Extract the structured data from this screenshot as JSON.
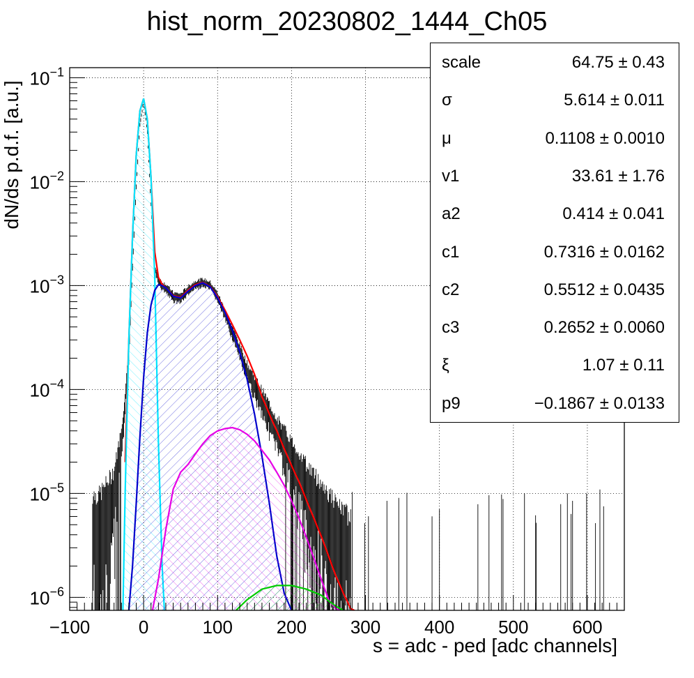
{
  "chart_data": {
    "type": "histogram",
    "title": "hist_norm_20230802_1444_Ch05",
    "xlabel": "s = adc - ped [adc channels]",
    "ylabel": "dN/ds p.d.f. [a.u.]",
    "xlim": [
      -100,
      650
    ],
    "ylim": [
      7.5e-07,
      0.125
    ],
    "yscale": "log",
    "grid": true,
    "x_ticks": [
      -100,
      0,
      100,
      200,
      300,
      400,
      500,
      600
    ],
    "y_ticks": [
      {
        "value": 0.1,
        "label": "10^{-1}"
      },
      {
        "value": 0.01,
        "label": "10^{-2}"
      },
      {
        "value": 0.001,
        "label": "10^{-3}"
      },
      {
        "value": 0.0001,
        "label": "10^{-4}"
      },
      {
        "value": 1e-05,
        "label": "10^{-5}"
      },
      {
        "value": 1e-06,
        "label": "10^{-6}"
      }
    ],
    "histogram": {
      "color": "#000000",
      "x": [
        -70,
        -60,
        -50,
        -40,
        -30,
        -20,
        -15,
        -10,
        -5,
        0,
        5,
        10,
        15,
        20,
        25,
        30,
        40,
        50,
        60,
        70,
        80,
        90,
        100,
        120,
        140,
        160,
        180,
        200,
        220,
        240,
        260,
        280
      ],
      "y": [
        5e-06,
        5e-06,
        7e-06,
        1e-05,
        3e-05,
        0.0002,
        0.0015,
        0.009,
        0.035,
        0.06,
        0.03,
        0.006,
        0.0015,
        0.0011,
        0.001,
        0.00095,
        0.00078,
        0.00076,
        0.0009,
        0.00102,
        0.00107,
        0.001,
        0.00078,
        0.00036,
        0.00015,
        8e-05,
        4e-05,
        2.2e-05,
        1.2e-05,
        7e-06,
        4e-06,
        3e-06
      ]
    },
    "series": [
      {
        "name": "",
        "color": "#ff0000",
        "x": [
          -25,
          -20,
          -15,
          -10,
          -5,
          0,
          5,
          10,
          15,
          20,
          25,
          30,
          40,
          50,
          60,
          70,
          80,
          90,
          100,
          110,
          120,
          130,
          140,
          150,
          160,
          170,
          180,
          190,
          200,
          210,
          220,
          230,
          240,
          250,
          260,
          270,
          280,
          285
        ],
        "y": [
          2e-05,
          0.0003,
          0.003,
          0.018,
          0.048,
          0.063,
          0.04,
          0.011,
          0.0021,
          0.0012,
          0.00103,
          0.00095,
          0.0008,
          0.00077,
          0.0009,
          0.00102,
          0.00107,
          0.00098,
          0.00078,
          0.00058,
          0.00042,
          0.0003,
          0.00021,
          0.00014,
          8.55e-05,
          5.8e-05,
          4e-05,
          2.7e-05,
          1.85e-05,
          1.3e-05,
          8.7e-06,
          5.8e-06,
          3.9e-06,
          2.5e-06,
          1.6e-06,
          1.1e-06,
          7.8e-07,
          7.5e-07
        ]
      },
      {
        "name": "",
        "color": "#00e5ff",
        "fill": true,
        "x": [
          -28,
          -25,
          -20,
          -15,
          -10,
          -5,
          0,
          5,
          10,
          15,
          20,
          25,
          28
        ],
        "y": [
          7.5e-07,
          1e-05,
          0.0003,
          0.003,
          0.018,
          0.048,
          0.063,
          0.04,
          0.011,
          0.0012,
          3e-05,
          2e-06,
          7.5e-07
        ]
      },
      {
        "name": "",
        "color": "#0000cc",
        "fill": true,
        "x": [
          -20,
          -15,
          -10,
          -5,
          0,
          5,
          10,
          15,
          20,
          25,
          30,
          40,
          50,
          60,
          70,
          80,
          90,
          100,
          110,
          120,
          130,
          140,
          150,
          160,
          170,
          180,
          190,
          200
        ],
        "y": [
          7.5e-07,
          2e-06,
          8e-06,
          3.5e-05,
          0.00013,
          0.00035,
          0.00065,
          0.0009,
          0.00102,
          0.001,
          0.00095,
          0.00079,
          0.00076,
          0.00088,
          0.001,
          0.00106,
          0.00097,
          0.00076,
          0.00055,
          0.00037,
          0.00023,
          0.000125,
          5.8e-05,
          2.3e-05,
          8e-06,
          2.5e-06,
          1.1e-06,
          7.5e-07
        ]
      },
      {
        "name": "",
        "color": "#e600e6",
        "fill": true,
        "x": [
          12,
          20,
          30,
          40,
          50,
          60,
          70,
          80,
          90,
          100,
          110,
          120,
          130,
          140,
          150,
          160,
          170,
          180,
          190,
          200,
          210,
          220,
          230,
          240,
          250,
          260,
          265
        ],
        "y": [
          7.5e-07,
          1.5e-06,
          4.5e-06,
          1.1e-05,
          1.6e-05,
          1.9e-05,
          2.4e-05,
          3e-05,
          3.6e-05,
          4e-05,
          4.2e-05,
          4.3e-05,
          4.1e-05,
          3.7e-05,
          3.2e-05,
          2.6e-05,
          2.1e-05,
          1.6e-05,
          1.2e-05,
          8.5e-06,
          5.8e-06,
          3.8e-06,
          2.4e-06,
          1.5e-06,
          9.5e-07,
          7.8e-07,
          7.5e-07
        ]
      },
      {
        "name": "",
        "color": "#00cc00",
        "fill": true,
        "x": [
          125,
          140,
          160,
          180,
          200,
          220,
          240,
          260,
          270
        ],
        "y": [
          7.5e-07,
          9.5e-07,
          1.2e-06,
          1.3e-06,
          1.3e-06,
          1.2e-06,
          1.05e-06,
          8.2e-07,
          7.5e-07
        ]
      }
    ]
  },
  "stats": {
    "rows": [
      {
        "name": "scale",
        "value": "64.75 ± 0.43"
      },
      {
        "name": "σ",
        "value": "5.614 ± 0.011"
      },
      {
        "name": "μ",
        "value": "0.1108 ± 0.0010"
      },
      {
        "name": "v1",
        "value": "33.61 ± 1.76"
      },
      {
        "name": "a2",
        "value": "0.414 ± 0.041"
      },
      {
        "name": "c1",
        "value": "0.7316 ± 0.0162"
      },
      {
        "name": "c2",
        "value": "0.5512 ± 0.0435"
      },
      {
        "name": "c3",
        "value": "0.2652 ± 0.0060"
      },
      {
        "name": "ξ",
        "value": "1.07 ± 0.11"
      },
      {
        "name": "p9",
        "value": "−0.1867 ± 0.0133"
      }
    ]
  }
}
